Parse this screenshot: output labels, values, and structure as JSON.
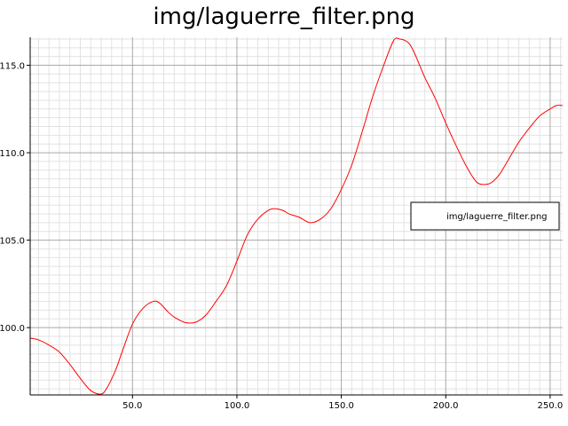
{
  "chart_data": {
    "type": "line",
    "title": "img/laguerre_filter.png",
    "xlabel": "",
    "ylabel": "",
    "xlim": [
      1,
      256
    ],
    "ylim": [
      96.15,
      116.6
    ],
    "x_ticks": [
      {
        "value": 50,
        "label": "50.0"
      },
      {
        "value": 100,
        "label": "100.0"
      },
      {
        "value": 150,
        "label": "150.0"
      },
      {
        "value": 200,
        "label": "200.0"
      },
      {
        "value": 250,
        "label": "250.0"
      }
    ],
    "y_ticks": [
      {
        "value": 100,
        "label": "100.0"
      },
      {
        "value": 105,
        "label": "105.0"
      },
      {
        "value": 110,
        "label": "110.0"
      },
      {
        "value": 115,
        "label": "115.0"
      }
    ],
    "grid": true,
    "legend_position": "right",
    "series": [
      {
        "name": "img/laguerre_filter.png",
        "color": "#ff0000",
        "x": [
          1,
          5,
          10,
          15,
          20,
          25,
          30,
          35,
          38,
          42,
          45,
          50,
          55,
          60,
          63,
          67,
          70,
          75,
          80,
          85,
          90,
          95,
          100,
          105,
          110,
          115,
          118,
          122,
          125,
          130,
          135,
          140,
          145,
          150,
          155,
          160,
          165,
          170,
          175,
          178,
          182,
          185,
          190,
          195,
          200,
          205,
          210,
          215,
          220,
          223,
          226,
          230,
          235,
          240,
          245,
          250,
          253,
          256
        ],
        "y": [
          99.4,
          99.3,
          99.0,
          98.6,
          97.9,
          97.1,
          96.4,
          96.2,
          96.6,
          97.6,
          98.6,
          100.2,
          101.1,
          101.5,
          101.4,
          100.9,
          100.6,
          100.3,
          100.3,
          100.7,
          101.5,
          102.4,
          103.8,
          105.3,
          106.2,
          106.7,
          106.8,
          106.7,
          106.5,
          106.3,
          106.0,
          106.2,
          106.8,
          107.9,
          109.3,
          111.2,
          113.2,
          114.9,
          116.4,
          116.5,
          116.3,
          115.7,
          114.3,
          113.1,
          111.7,
          110.4,
          109.2,
          108.3,
          108.2,
          108.4,
          108.8,
          109.6,
          110.6,
          111.4,
          112.1,
          112.5,
          112.7,
          112.7
        ]
      }
    ]
  }
}
